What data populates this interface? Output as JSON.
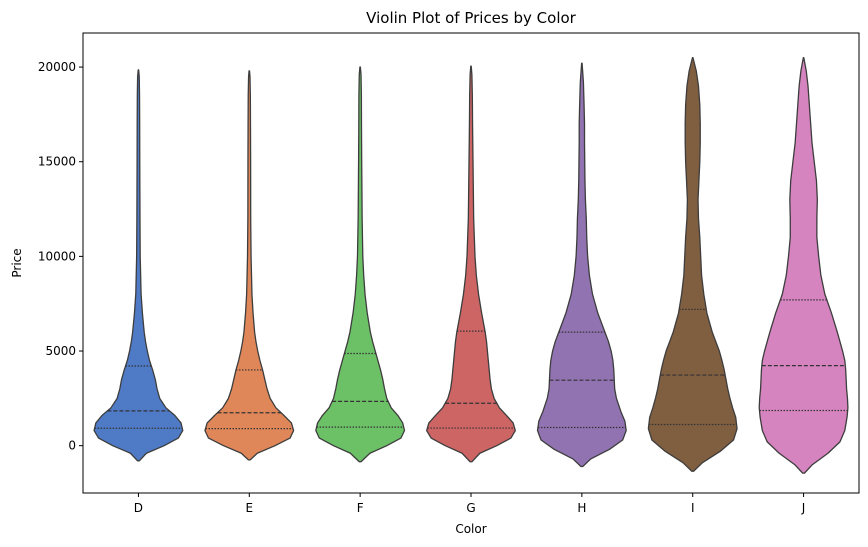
{
  "chart_data": {
    "type": "violin",
    "title": "Violin Plot of Prices by Color",
    "xlabel": "Color",
    "ylabel": "Price",
    "ylim": [
      -2500,
      21800
    ],
    "yticks": [
      0,
      5000,
      10000,
      15000,
      20000
    ],
    "legend": "none",
    "grid": false,
    "categories": [
      "D",
      "E",
      "F",
      "G",
      "H",
      "I",
      "J"
    ],
    "colors": [
      "#4f7ac6",
      "#e0875a",
      "#6cc167",
      "#cd6565",
      "#9173b2",
      "#805e40",
      "#d684c0"
    ],
    "quartiles": {
      "q1": [
        920,
        900,
        980,
        930,
        960,
        1120,
        1860
      ],
      "median": [
        1840,
        1740,
        2340,
        2240,
        3460,
        3730,
        4230
      ],
      "q3": [
        4210,
        4000,
        4870,
        6050,
        6000,
        7200,
        7700
      ]
    },
    "range": {
      "min": [
        -800,
        -750,
        -850,
        -850,
        -1100,
        -1350,
        -1450
      ],
      "max": [
        19850,
        19800,
        20000,
        20050,
        20200,
        20500,
        20500
      ]
    },
    "density_profile": [
      [
        [
          -800,
          0.02
        ],
        [
          -400,
          0.18
        ],
        [
          0,
          0.58
        ],
        [
          400,
          0.9
        ],
        [
          800,
          1.0
        ],
        [
          1200,
          0.96
        ],
        [
          1600,
          0.82
        ],
        [
          2000,
          0.62
        ],
        [
          2500,
          0.48
        ],
        [
          3000,
          0.42
        ],
        [
          3500,
          0.38
        ],
        [
          4000,
          0.32
        ],
        [
          4500,
          0.25
        ],
        [
          5000,
          0.2
        ],
        [
          5500,
          0.16
        ],
        [
          6000,
          0.13
        ],
        [
          7000,
          0.09
        ],
        [
          8000,
          0.06
        ],
        [
          10000,
          0.04
        ],
        [
          12000,
          0.035
        ],
        [
          15000,
          0.03
        ],
        [
          17000,
          0.028
        ],
        [
          18500,
          0.025
        ],
        [
          19500,
          0.018
        ],
        [
          19850,
          0.005
        ]
      ],
      [
        [
          -750,
          0.02
        ],
        [
          -400,
          0.18
        ],
        [
          0,
          0.58
        ],
        [
          400,
          0.92
        ],
        [
          800,
          1.0
        ],
        [
          1200,
          0.95
        ],
        [
          1600,
          0.78
        ],
        [
          2000,
          0.6
        ],
        [
          2500,
          0.47
        ],
        [
          3000,
          0.4
        ],
        [
          3500,
          0.35
        ],
        [
          4000,
          0.3
        ],
        [
          4500,
          0.24
        ],
        [
          5000,
          0.19
        ],
        [
          5500,
          0.15
        ],
        [
          6000,
          0.12
        ],
        [
          7000,
          0.085
        ],
        [
          8000,
          0.06
        ],
        [
          10000,
          0.04
        ],
        [
          12000,
          0.032
        ],
        [
          15000,
          0.03
        ],
        [
          17000,
          0.027
        ],
        [
          18500,
          0.024
        ],
        [
          19500,
          0.016
        ],
        [
          19800,
          0.005
        ]
      ],
      [
        [
          -850,
          0.02
        ],
        [
          -400,
          0.22
        ],
        [
          0,
          0.6
        ],
        [
          400,
          0.92
        ],
        [
          800,
          1.0
        ],
        [
          1200,
          0.96
        ],
        [
          1600,
          0.85
        ],
        [
          2000,
          0.7
        ],
        [
          2500,
          0.6
        ],
        [
          3000,
          0.55
        ],
        [
          3500,
          0.51
        ],
        [
          4000,
          0.46
        ],
        [
          4500,
          0.4
        ],
        [
          5000,
          0.34
        ],
        [
          5500,
          0.28
        ],
        [
          6000,
          0.23
        ],
        [
          7000,
          0.16
        ],
        [
          8000,
          0.11
        ],
        [
          9000,
          0.08
        ],
        [
          10000,
          0.06
        ],
        [
          12000,
          0.045
        ],
        [
          15000,
          0.035
        ],
        [
          17000,
          0.03
        ],
        [
          18500,
          0.028
        ],
        [
          19600,
          0.02
        ],
        [
          20000,
          0.005
        ]
      ],
      [
        [
          -850,
          0.02
        ],
        [
          -400,
          0.2
        ],
        [
          0,
          0.58
        ],
        [
          400,
          0.9
        ],
        [
          800,
          1.0
        ],
        [
          1200,
          0.95
        ],
        [
          1600,
          0.8
        ],
        [
          2000,
          0.64
        ],
        [
          2500,
          0.52
        ],
        [
          3000,
          0.46
        ],
        [
          3500,
          0.43
        ],
        [
          4000,
          0.41
        ],
        [
          4500,
          0.39
        ],
        [
          5000,
          0.37
        ],
        [
          5500,
          0.35
        ],
        [
          6000,
          0.32
        ],
        [
          6500,
          0.28
        ],
        [
          7000,
          0.24
        ],
        [
          8000,
          0.17
        ],
        [
          9000,
          0.12
        ],
        [
          10000,
          0.09
        ],
        [
          12000,
          0.06
        ],
        [
          15000,
          0.045
        ],
        [
          17000,
          0.035
        ],
        [
          18500,
          0.03
        ],
        [
          19600,
          0.02
        ],
        [
          20050,
          0.005
        ]
      ],
      [
        [
          -1100,
          0.02
        ],
        [
          -700,
          0.2
        ],
        [
          -200,
          0.62
        ],
        [
          300,
          0.92
        ],
        [
          800,
          1.0
        ],
        [
          1300,
          0.97
        ],
        [
          1800,
          0.88
        ],
        [
          2500,
          0.78
        ],
        [
          3000,
          0.74
        ],
        [
          3500,
          0.73
        ],
        [
          4000,
          0.72
        ],
        [
          4500,
          0.7
        ],
        [
          5000,
          0.66
        ],
        [
          5500,
          0.6
        ],
        [
          6000,
          0.52
        ],
        [
          7000,
          0.36
        ],
        [
          8000,
          0.24
        ],
        [
          9000,
          0.17
        ],
        [
          10000,
          0.13
        ],
        [
          11000,
          0.11
        ],
        [
          12000,
          0.1
        ],
        [
          13000,
          0.08
        ],
        [
          14000,
          0.07
        ],
        [
          15000,
          0.065
        ],
        [
          16000,
          0.06
        ],
        [
          17000,
          0.06
        ],
        [
          18000,
          0.05
        ],
        [
          19200,
          0.035
        ],
        [
          20200,
          0.005
        ]
      ],
      [
        [
          -1350,
          0.02
        ],
        [
          -900,
          0.22
        ],
        [
          -300,
          0.62
        ],
        [
          300,
          0.92
        ],
        [
          900,
          1.0
        ],
        [
          1500,
          0.97
        ],
        [
          2000,
          0.9
        ],
        [
          2500,
          0.84
        ],
        [
          3000,
          0.79
        ],
        [
          3500,
          0.75
        ],
        [
          4000,
          0.71
        ],
        [
          4500,
          0.66
        ],
        [
          5000,
          0.6
        ],
        [
          5500,
          0.52
        ],
        [
          6000,
          0.44
        ],
        [
          7000,
          0.32
        ],
        [
          8000,
          0.25
        ],
        [
          9000,
          0.2
        ],
        [
          10000,
          0.18
        ],
        [
          11000,
          0.16
        ],
        [
          12000,
          0.13
        ],
        [
          13000,
          0.12
        ],
        [
          14000,
          0.14
        ],
        [
          15000,
          0.16
        ],
        [
          16000,
          0.17
        ],
        [
          17000,
          0.17
        ],
        [
          18000,
          0.16
        ],
        [
          19000,
          0.13
        ],
        [
          19800,
          0.08
        ],
        [
          20500,
          0.005
        ]
      ],
      [
        [
          -1450,
          0.02
        ],
        [
          -1000,
          0.2
        ],
        [
          -400,
          0.55
        ],
        [
          200,
          0.82
        ],
        [
          800,
          0.93
        ],
        [
          1500,
          0.98
        ],
        [
          2000,
          1.0
        ],
        [
          2500,
          0.99
        ],
        [
          3000,
          0.97
        ],
        [
          3500,
          0.96
        ],
        [
          4000,
          0.95
        ],
        [
          4500,
          0.93
        ],
        [
          5000,
          0.88
        ],
        [
          5500,
          0.82
        ],
        [
          6000,
          0.76
        ],
        [
          7000,
          0.63
        ],
        [
          8000,
          0.48
        ],
        [
          9000,
          0.39
        ],
        [
          10000,
          0.34
        ],
        [
          11000,
          0.3
        ],
        [
          12000,
          0.3
        ],
        [
          13000,
          0.31
        ],
        [
          14000,
          0.29
        ],
        [
          15000,
          0.24
        ],
        [
          16000,
          0.19
        ],
        [
          17000,
          0.16
        ],
        [
          18000,
          0.13
        ],
        [
          19000,
          0.1
        ],
        [
          19800,
          0.06
        ],
        [
          20500,
          0.005
        ]
      ]
    ]
  }
}
